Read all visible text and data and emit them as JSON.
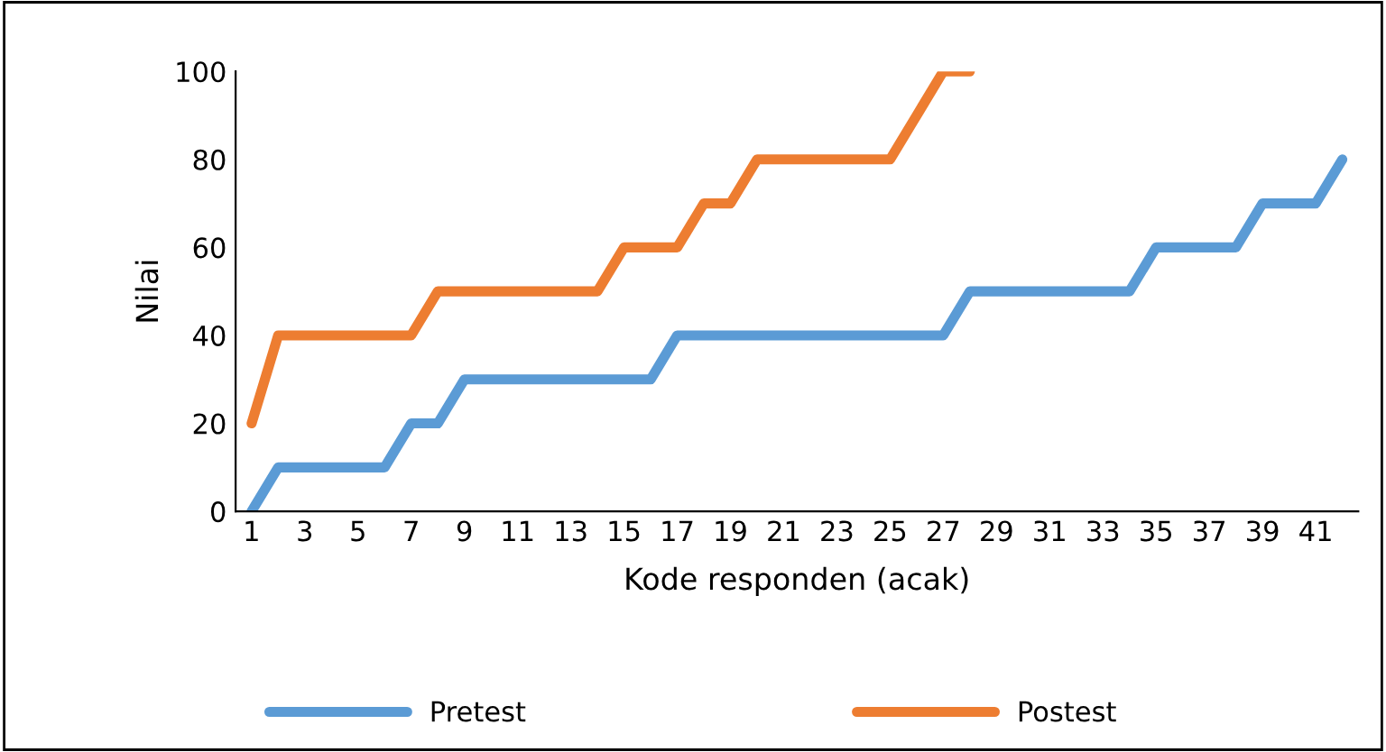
{
  "chart_data": {
    "type": "line",
    "xlabel": "Kode responden (acak)",
    "ylabel": "Nilai",
    "categories": [
      "1",
      null,
      "3",
      null,
      "5",
      null,
      "7",
      null,
      "9",
      null,
      "11",
      null,
      "13",
      null,
      "15",
      null,
      "17",
      null,
      "19",
      null,
      "21",
      null,
      "23",
      null,
      "25",
      null,
      "27",
      null,
      "29",
      null,
      "31",
      null,
      "33",
      null,
      "35",
      null,
      "37",
      null,
      "39",
      null,
      "41",
      null
    ],
    "series": [
      {
        "name": "Pretest",
        "color": "#5b9bd5",
        "values": [
          0,
          10,
          10,
          10,
          10,
          10,
          20,
          20,
          30,
          30,
          30,
          30,
          30,
          30,
          30,
          30,
          40,
          40,
          40,
          40,
          40,
          40,
          40,
          40,
          40,
          40,
          40,
          50,
          50,
          50,
          50,
          50,
          50,
          50,
          60,
          60,
          60,
          60,
          70,
          70,
          70,
          80
        ]
      },
      {
        "name": "Postest",
        "color": "#ed7d31",
        "values": [
          20,
          40,
          40,
          40,
          40,
          40,
          40,
          50,
          50,
          50,
          50,
          50,
          50,
          50,
          60,
          60,
          60,
          70,
          70,
          80,
          80,
          80,
          80,
          80,
          80,
          90,
          100,
          100,
          null,
          null,
          null,
          null,
          null,
          null,
          null,
          null,
          null,
          null,
          null,
          null,
          null,
          null
        ]
      }
    ],
    "ylim": [
      0,
      100
    ],
    "yticks": [
      0,
      20,
      40,
      60,
      80,
      100
    ],
    "grid": false,
    "legend": "bottom",
    "marker": "none",
    "line_style": "solid"
  }
}
